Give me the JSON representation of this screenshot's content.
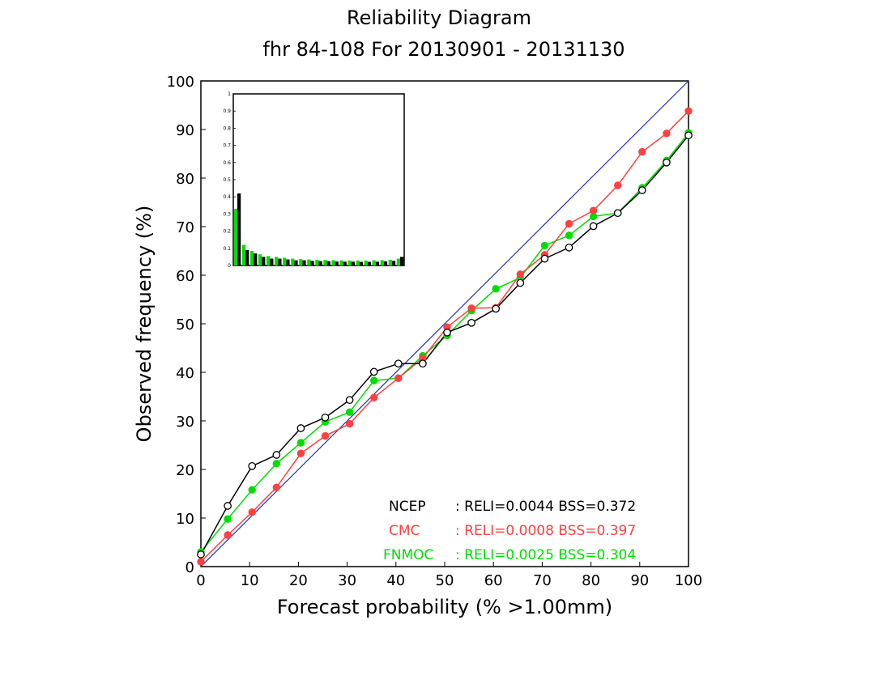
{
  "chart_data": {
    "type": "line",
    "title": "Reliability Diagram",
    "subtitle": "fhr 84-108 For 20130901 - 20131130",
    "xlabel": "Forecast probability (% >1.00mm)",
    "ylabel": "Observed frequency (%)",
    "xlim": [
      0,
      100
    ],
    "ylim": [
      0,
      100
    ],
    "xticks": [
      "0",
      "10",
      "20",
      "30",
      "40",
      "50",
      "60",
      "70",
      "80",
      "90",
      "100"
    ],
    "yticks": [
      "0",
      "10",
      "20",
      "30",
      "40",
      "50",
      "60",
      "70",
      "80",
      "90",
      "100"
    ],
    "x": [
      0,
      5.5,
      10.5,
      15.5,
      20.5,
      25.5,
      30.5,
      35.5,
      40.5,
      45.5,
      50.5,
      55.5,
      60.5,
      65.5,
      70.5,
      75.5,
      80.5,
      85.5,
      90.5,
      95.5,
      100
    ],
    "series": [
      {
        "name": "NCEP",
        "color": "#000000",
        "marker": "open-circle",
        "values": [
          2.5,
          12.5,
          20.7,
          23.0,
          28.5,
          30.7,
          34.3,
          40.1,
          41.8,
          41.8,
          48.2,
          50.2,
          53.1,
          58.4,
          63.4,
          65.7,
          70.1,
          72.8,
          77.5,
          83.2,
          88.8
        ],
        "stats": ": RELI=0.0044 BSS=0.372"
      },
      {
        "name": "CMC",
        "color": "#ff4040",
        "marker": "filled-circle",
        "values": [
          1.0,
          6.5,
          11.2,
          16.3,
          23.3,
          26.9,
          29.4,
          34.8,
          38.8,
          42.9,
          49.3,
          53.2,
          53.3,
          60.2,
          64.2,
          70.6,
          73.3,
          78.5,
          85.4,
          89.2,
          93.8
        ],
        "stats": ": RELI=0.0008 BSS=0.397"
      },
      {
        "name": "FNMOC",
        "color": "#00dd00",
        "marker": "filled-circle",
        "values": [
          3.0,
          9.8,
          15.8,
          21.2,
          25.5,
          29.8,
          31.8,
          38.3,
          38.8,
          43.4,
          47.6,
          52.7,
          57.2,
          59.5,
          66.1,
          68.2,
          72.1,
          72.8,
          78.0,
          83.6,
          89.3
        ],
        "stats": ": RELI=0.0025 BSS=0.304"
      }
    ],
    "diagonal_color": "#2030c0",
    "inset": {
      "type": "bar",
      "description": "forecast frequency histogram",
      "ylim": [
        0,
        1
      ],
      "yticks": [
        "0",
        "0.1",
        "0.2",
        "0.3",
        "0.4",
        "0.5",
        "0.6",
        "0.7",
        "0.8",
        "0.9",
        "1"
      ],
      "bins": 21,
      "series": [
        {
          "name": "NCEP",
          "color": "#000000",
          "values": [
            0.42,
            0.09,
            0.07,
            0.05,
            0.04,
            0.04,
            0.035,
            0.03,
            0.03,
            0.027,
            0.025,
            0.025,
            0.023,
            0.022,
            0.022,
            0.021,
            0.021,
            0.022,
            0.024,
            0.027,
            0.05
          ]
        },
        {
          "name": "FNMOC",
          "color": "#00dd00",
          "values": [
            0.33,
            0.12,
            0.085,
            0.065,
            0.055,
            0.05,
            0.045,
            0.04,
            0.037,
            0.035,
            0.033,
            0.032,
            0.031,
            0.03,
            0.029,
            0.029,
            0.029,
            0.03,
            0.031,
            0.033,
            0.04
          ]
        }
      ]
    }
  }
}
